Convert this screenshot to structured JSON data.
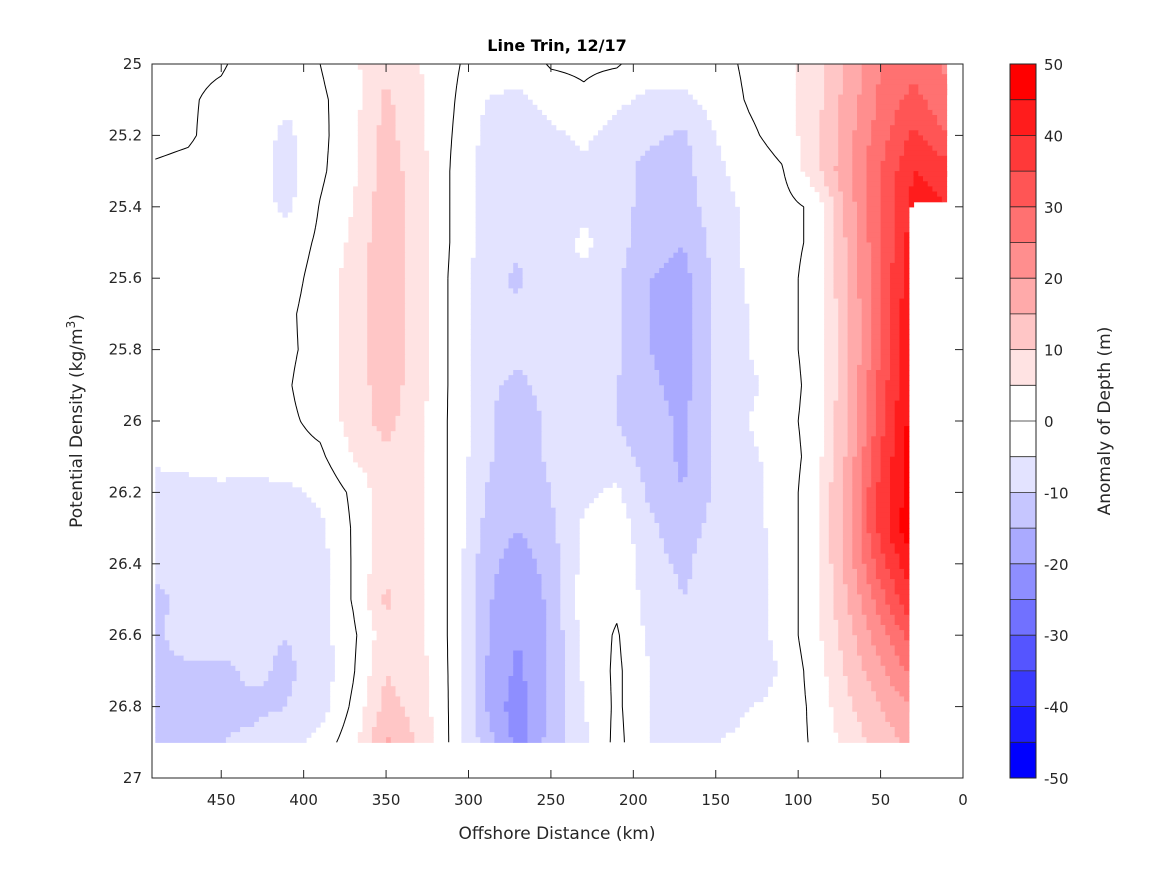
{
  "chart_data": {
    "type": "heatmap",
    "subtype": "filled-contour",
    "title": "Line Trin, 12/17",
    "xlabel": "Offshore Distance (km)",
    "ylabel": "Potential Density (kg/m",
    "ylabel_sup": "3",
    "ylabel_end": ")",
    "xlim": [
      0,
      492
    ],
    "x_reversed": true,
    "ylim": [
      25,
      27
    ],
    "y_reversed": true,
    "xticks": [
      450,
      400,
      350,
      300,
      250,
      200,
      150,
      100,
      50,
      0
    ],
    "yticks": [
      "25",
      "25.2",
      "25.4",
      "25.6",
      "25.8",
      "26",
      "26.2",
      "26.4",
      "26.6",
      "26.8",
      "27"
    ],
    "colorbar": {
      "label": "Anomaly of Depth (m)",
      "range": [
        -50,
        50
      ],
      "level_step": 5,
      "ticks": [
        "50",
        "40",
        "30",
        "20",
        "10",
        "0",
        "-10",
        "-20",
        "-30",
        "-40",
        "-50"
      ],
      "positive_color": "#ff0000",
      "negative_color": "#0000ff",
      "neutral_color": "#ffffff"
    },
    "contour_line_level": 0,
    "x": [
      490,
      470,
      450,
      430,
      410,
      390,
      370,
      350,
      330,
      310,
      290,
      270,
      250,
      230,
      210,
      190,
      170,
      150,
      130,
      110,
      90,
      70,
      50,
      30,
      10
    ],
    "y": [
      25.0,
      25.1,
      25.2,
      25.3,
      25.4,
      25.5,
      25.6,
      25.7,
      25.8,
      25.9,
      26.0,
      26.1,
      26.2,
      26.3,
      26.4,
      26.5,
      26.6,
      26.7,
      26.8,
      26.9
    ],
    "z": [
      [
        1,
        1,
        0.5,
        -2,
        -3,
        0,
        4,
        9,
        5,
        1,
        -3,
        -3,
        0.5,
        1,
        0.5,
        -3,
        -3,
        -2,
        1,
        3,
        7,
        16,
        25,
        28,
        24
      ],
      [
        0.5,
        0.5,
        -1,
        -3,
        -4,
        -1,
        3,
        11,
        6,
        0.5,
        -5,
        -6,
        -3,
        -1,
        -4,
        -6,
        -6,
        -3,
        0.5,
        3,
        8,
        17,
        26,
        32,
        26
      ],
      [
        1,
        0.5,
        -1.5,
        -3,
        -6,
        -1.5,
        4,
        12,
        6,
        0,
        -6,
        -8,
        -6,
        -4,
        -7,
        -9,
        -11,
        -5,
        -1,
        2,
        8,
        18,
        28,
        36,
        30
      ],
      [
        -0.5,
        -1,
        -2,
        -3,
        -7,
        -1,
        4,
        13,
        7,
        -0.5,
        -7,
        -8,
        -7,
        -6,
        -8,
        -12,
        -12,
        -6,
        -3,
        -0.5,
        8,
        19,
        30,
        40,
        38
      ],
      [
        -1,
        -1.5,
        -2,
        -3,
        -6,
        0.3,
        5,
        13,
        7,
        -0.5,
        -7,
        -8,
        -8,
        -6,
        -8,
        -12,
        -13,
        -7,
        -4,
        -2,
        1,
        17,
        30,
        42,
        40
      ],
      [
        -1,
        -1.5,
        -2,
        -3,
        -3,
        1,
        6,
        14,
        7,
        -0.5,
        -7,
        -9,
        -7,
        -4,
        -8,
        -13,
        -15,
        -8,
        -4,
        -2,
        1,
        16,
        30,
        43,
        null
      ],
      [
        -1.5,
        -2,
        -2,
        -2.5,
        -2,
        2,
        7,
        14,
        7,
        -1,
        -8,
        -11,
        -5,
        -6,
        -9,
        -15,
        -17,
        -9,
        -4,
        -2,
        2,
        15,
        30,
        45,
        null
      ],
      [
        -1.5,
        -2,
        -2,
        -2,
        -1,
        2.5,
        7,
        14,
        7,
        -1,
        -8,
        -9,
        -7,
        -8,
        -9,
        -15,
        -18,
        -9,
        -5,
        -2,
        2,
        14,
        30,
        46,
        null
      ],
      [
        -1.5,
        -2,
        -2,
        -2,
        -1,
        2,
        7,
        14,
        7,
        -1,
        -8,
        -9,
        -8,
        -8,
        -9,
        -15,
        -18,
        -9,
        -5,
        -2,
        2,
        14,
        30,
        46,
        null
      ],
      [
        -1.5,
        -2,
        -2,
        -2,
        -0.5,
        3,
        7,
        13,
        7,
        -1,
        -9,
        -11,
        -8,
        -8,
        -10,
        -14,
        -17,
        -9,
        -6,
        -3,
        2,
        14,
        32,
        47,
        null
      ],
      [
        -2,
        -2,
        -2,
        -2,
        -1,
        1.5,
        7,
        12,
        6,
        -1,
        -9,
        -13,
        -9,
        -8,
        -10,
        -13,
        -16,
        -9,
        -5,
        -2,
        2,
        15,
        33,
        48,
        null
      ],
      [
        -4,
        -3,
        -3,
        -2.5,
        -2,
        -1,
        5,
        9,
        6,
        -1,
        -9,
        -13,
        -9,
        -8,
        -8,
        -12,
        -16,
        -9,
        -6,
        -3,
        2,
        16,
        35,
        49,
        null
      ],
      [
        -7,
        -7,
        -6,
        -7,
        -6,
        -4,
        1,
        8,
        6,
        -1,
        -10,
        -14,
        -10,
        -6,
        -4,
        -11,
        -15,
        -9,
        -7,
        -3,
        3,
        18,
        37,
        49,
        null
      ],
      [
        -8,
        -8,
        -8,
        -8,
        -7,
        -6,
        0.5,
        8,
        6,
        -1,
        -11,
        -15,
        -11,
        -4,
        -2,
        -9,
        -13,
        -8,
        -7,
        -3,
        3,
        18,
        37,
        50,
        null
      ],
      [
        -9,
        -8,
        -8,
        -8,
        -8,
        -7,
        0.5,
        9,
        6,
        -1,
        -13,
        -18,
        -13,
        -3,
        -1,
        -8,
        -11,
        -7,
        -8,
        -3,
        3,
        17,
        33,
        45,
        null
      ],
      [
        -11,
        -9,
        -8,
        -8,
        -8,
        -7,
        0.5,
        11,
        6,
        -1,
        -14,
        -19,
        -14,
        -2,
        -1,
        -7,
        -10,
        -9,
        -7,
        -3,
        3,
        15,
        28,
        40,
        null
      ],
      [
        -11,
        -7,
        -8,
        -9,
        -10,
        -7,
        -1,
        8,
        6,
        -1,
        -14,
        -20,
        -14,
        -3,
        0.5,
        -6,
        -10,
        -10,
        -8,
        -3,
        3,
        13,
        23,
        33,
        null
      ],
      [
        -12,
        -11,
        -11,
        -9,
        -11,
        -8,
        -0.5,
        10,
        7,
        -1,
        -15,
        -21,
        -14,
        -4,
        1,
        -5,
        -8,
        -10,
        -10,
        -4,
        2,
        11,
        19,
        27,
        null
      ],
      [
        -12,
        -12,
        -11,
        -11,
        -10,
        -7,
        1,
        12,
        8,
        -1,
        -15,
        -23,
        -14,
        -5,
        1,
        -5,
        -8,
        -7,
        -5,
        -3,
        1,
        9,
        15,
        20,
        null
      ],
      [
        -13,
        -12,
        -10,
        -9,
        -7,
        -3,
        3,
        16,
        9,
        -1,
        -12,
        -22,
        -13,
        -6,
        1.5,
        -5,
        -9,
        -5,
        -4,
        -2,
        0.5,
        7,
        12,
        17,
        null
      ]
    ]
  }
}
